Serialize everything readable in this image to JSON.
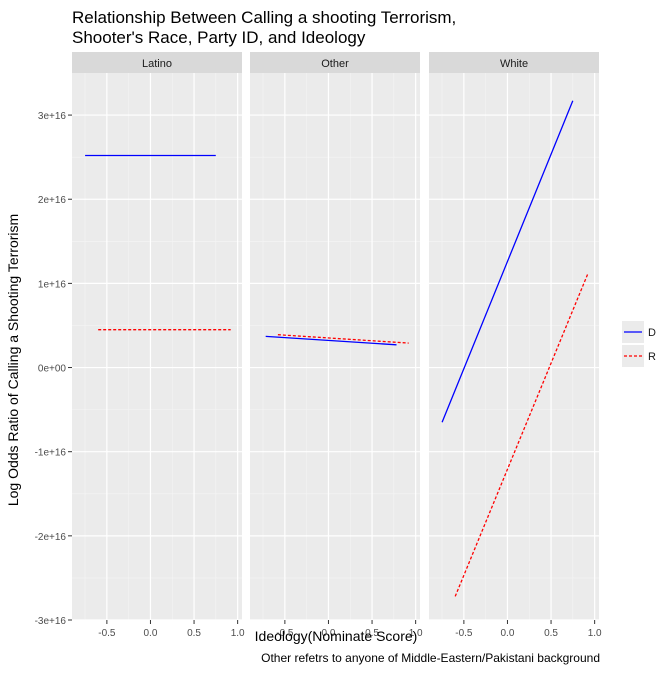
{
  "chart_data": {
    "type": "line",
    "title_line1": "Relationship Between Calling a shooting Terrorism,",
    "title_line2": "Shooter's Race, Party ID, and Ideology",
    "xlabel": "Ideology(Nominate Score)",
    "ylabel": "Log Odds Ratio of Calling a Shooting Terrorism",
    "caption": "Other refetrs to anyone of Middle-Eastern/Pakistani background",
    "xlim": [
      -0.9,
      1.05
    ],
    "ylim": [
      -3e+16,
      3.5e+16
    ],
    "x_ticks": [
      -0.5,
      0.0,
      0.5,
      1.0
    ],
    "x_tick_labels": [
      "-0.5",
      "0.0",
      "0.5",
      "1.0"
    ],
    "y_ticks": [
      -3e+16,
      -2e+16,
      -1e+16,
      0,
      1e+16,
      2e+16,
      3e+16
    ],
    "y_tick_labels": [
      "-3e+16",
      "-2e+16",
      "-1e+16",
      "0e+00",
      "1e+16",
      "2e+16",
      "3e+16"
    ],
    "grid": true,
    "legend_position": "right",
    "legend": [
      {
        "label": "D",
        "color": "#0000ff",
        "dash": "solid"
      },
      {
        "label": "R",
        "color": "#ff0000",
        "dash": "dotted"
      }
    ],
    "panels": [
      {
        "label": "Latino",
        "series": [
          {
            "name": "D",
            "x": [
              -0.75,
              0.75
            ],
            "y": [
              2.52e+16,
              2.52e+16
            ]
          },
          {
            "name": "R",
            "x": [
              -0.6,
              0.92
            ],
            "y": [
              4500000000000000.0,
              4500000000000000.0
            ]
          }
        ]
      },
      {
        "label": "Other",
        "series": [
          {
            "name": "D",
            "x": [
              -0.72,
              0.78
            ],
            "y": [
              3700000000000000.0,
              2700000000000000.0
            ]
          },
          {
            "name": "R",
            "x": [
              -0.58,
              0.92
            ],
            "y": [
              3900000000000000.0,
              2900000000000000.0
            ]
          }
        ]
      },
      {
        "label": "White",
        "series": [
          {
            "name": "D",
            "x": [
              -0.75,
              0.75
            ],
            "y": [
              -6500000000000000.0,
              3.17e+16
            ]
          },
          {
            "name": "R",
            "x": [
              -0.6,
              0.92
            ],
            "y": [
              -2.72e+16,
              1.11e+16
            ]
          }
        ]
      }
    ]
  }
}
